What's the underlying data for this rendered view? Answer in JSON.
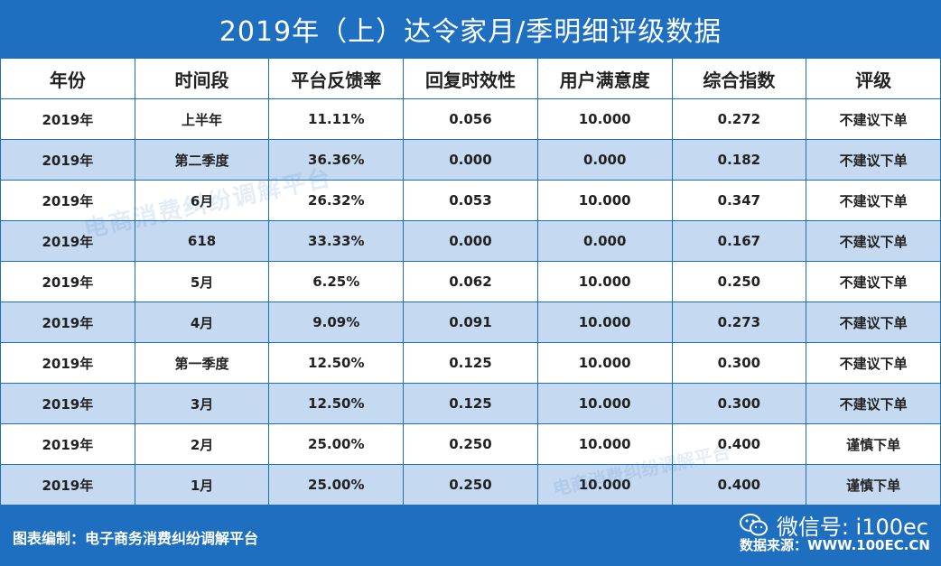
{
  "title": "2019年（上）达令家月/季明细评级数据",
  "table": {
    "headers": [
      "年份",
      "时间段",
      "平台反馈率",
      "回复时效性",
      "用户满意度",
      "综合指数",
      "评级"
    ],
    "rows": [
      [
        "2019年",
        "上半年",
        "11.11%",
        "0.056",
        "10.000",
        "0.272",
        "不建议下单"
      ],
      [
        "2019年",
        "第二季度",
        "36.36%",
        "0.000",
        "0.000",
        "0.182",
        "不建议下单"
      ],
      [
        "2019年",
        "6月",
        "26.32%",
        "0.053",
        "10.000",
        "0.347",
        "不建议下单"
      ],
      [
        "2019年",
        "618",
        "33.33%",
        "0.000",
        "0.000",
        "0.167",
        "不建议下单"
      ],
      [
        "2019年",
        "5月",
        "6.25%",
        "0.062",
        "10.000",
        "0.250",
        "不建议下单"
      ],
      [
        "2019年",
        "4月",
        "9.09%",
        "0.091",
        "10.000",
        "0.273",
        "不建议下单"
      ],
      [
        "2019年",
        "第一季度",
        "12.50%",
        "0.125",
        "10.000",
        "0.300",
        "不建议下单"
      ],
      [
        "2019年",
        "3月",
        "12.50%",
        "0.125",
        "10.000",
        "0.300",
        "不建议下单"
      ],
      [
        "2019年",
        "2月",
        "25.00%",
        "0.250",
        "10.000",
        "0.400",
        "谨慎下单"
      ],
      [
        "2019年",
        "1月",
        "25.00%",
        "0.250",
        "10.000",
        "0.400",
        "谨慎下单"
      ]
    ]
  },
  "watermark": "电商消费纠纷调解平台",
  "footer": {
    "credit": "图表编制：电子商务消费纠纷调解平台",
    "wechat": "微信号: i100ec",
    "source": "数据来源：WWW.100EC.CN"
  },
  "colors": {
    "accent": "#1e6fc0",
    "alt_row": "#c5d9f1"
  },
  "icons": {
    "wechat": "wechat-icon"
  }
}
